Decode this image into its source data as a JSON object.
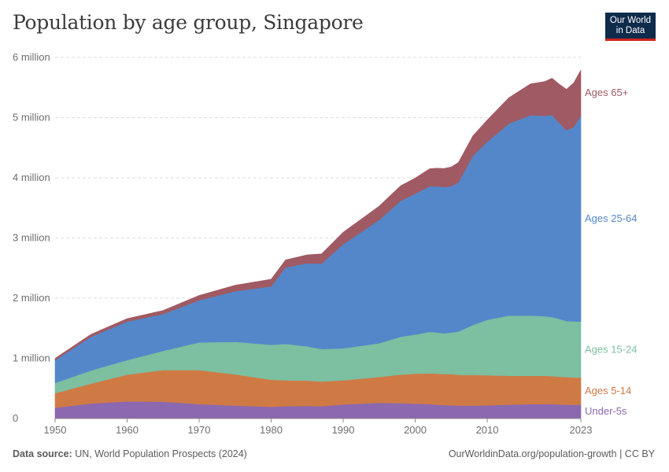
{
  "header": {
    "title": "Population by age group, Singapore",
    "logo_line1": "Our World",
    "logo_line2": "in Data"
  },
  "footer": {
    "source_label": "Data source:",
    "source_text": "UN, World Population Prospects (2024)",
    "credit": "OurWorldinData.org/population-growth | CC BY"
  },
  "colors": {
    "under5": "#8c68b0",
    "age5_14": "#cf7a45",
    "age15_24": "#7cbfa1",
    "age25_64": "#5487c9",
    "age65": "#a05a63",
    "grid": "#dddddd",
    "tick": "#6e6e6e"
  },
  "chart_data": {
    "type": "area",
    "stacked": true,
    "title": "Population by age group, Singapore",
    "x_ticks": [
      1950,
      1960,
      1970,
      1980,
      1990,
      2000,
      2010,
      2023
    ],
    "y_ticks": [
      {
        "value": 0,
        "label": "0"
      },
      {
        "value": 1000000,
        "label": "1 million"
      },
      {
        "value": 2000000,
        "label": "2 million"
      },
      {
        "value": 3000000,
        "label": "3 million"
      },
      {
        "value": 4000000,
        "label": "4 million"
      },
      {
        "value": 5000000,
        "label": "5 million"
      },
      {
        "value": 6000000,
        "label": "6 million"
      }
    ],
    "xlim": [
      1950,
      2023
    ],
    "ylim": [
      0,
      6000000
    ],
    "grid": true,
    "legend": "right, inline labels",
    "x": [
      1950,
      1955,
      1960,
      1965,
      1970,
      1975,
      1980,
      1982,
      1985,
      1987,
      1990,
      1995,
      1998,
      2000,
      2002,
      2003,
      2004,
      2005,
      2006,
      2008,
      2010,
      2013,
      2016,
      2018,
      2019,
      2020,
      2021,
      2022,
      2023
    ],
    "series": [
      {
        "name": "Under-5s",
        "key": "under5",
        "values": [
          180000,
          250000,
          285000,
          280000,
          240000,
          215000,
          195000,
          205000,
          210000,
          205000,
          235000,
          260000,
          255000,
          245000,
          240000,
          230000,
          225000,
          220000,
          215000,
          215000,
          220000,
          230000,
          240000,
          240000,
          240000,
          235000,
          230000,
          230000,
          230000
        ]
      },
      {
        "name": "Ages 5-14",
        "key": "age5_14",
        "values": [
          240000,
          330000,
          445000,
          525000,
          565000,
          520000,
          450000,
          430000,
          420000,
          410000,
          400000,
          430000,
          475000,
          500000,
          510000,
          515000,
          515000,
          520000,
          510000,
          510000,
          500000,
          480000,
          470000,
          470000,
          465000,
          460000,
          460000,
          450000,
          450000
        ]
      },
      {
        "name": "Ages 15-24",
        "key": "age15_24",
        "values": [
          170000,
          220000,
          240000,
          320000,
          460000,
          540000,
          580000,
          605000,
          570000,
          540000,
          530000,
          560000,
          630000,
          650000,
          690000,
          685000,
          675000,
          690000,
          720000,
          830000,
          920000,
          1000000,
          1000000,
          990000,
          980000,
          960000,
          930000,
          935000,
          930000
        ]
      },
      {
        "name": "Ages 25-64",
        "key": "age25_64",
        "values": [
          380000,
          560000,
          640000,
          610000,
          700000,
          840000,
          970000,
          1270000,
          1380000,
          1420000,
          1730000,
          2050000,
          2260000,
          2340000,
          2420000,
          2430000,
          2430000,
          2430000,
          2480000,
          2810000,
          2960000,
          3190000,
          3330000,
          3330000,
          3360000,
          3260000,
          3170000,
          3230000,
          3420000
        ]
      },
      {
        "name": "Ages 65+",
        "key": "age65",
        "values": [
          30000,
          40000,
          50000,
          60000,
          80000,
          100000,
          120000,
          125000,
          140000,
          160000,
          200000,
          230000,
          250000,
          260000,
          290000,
          300000,
          310000,
          320000,
          330000,
          330000,
          360000,
          430000,
          520000,
          570000,
          610000,
          640000,
          680000,
          730000,
          760000
        ]
      }
    ]
  }
}
